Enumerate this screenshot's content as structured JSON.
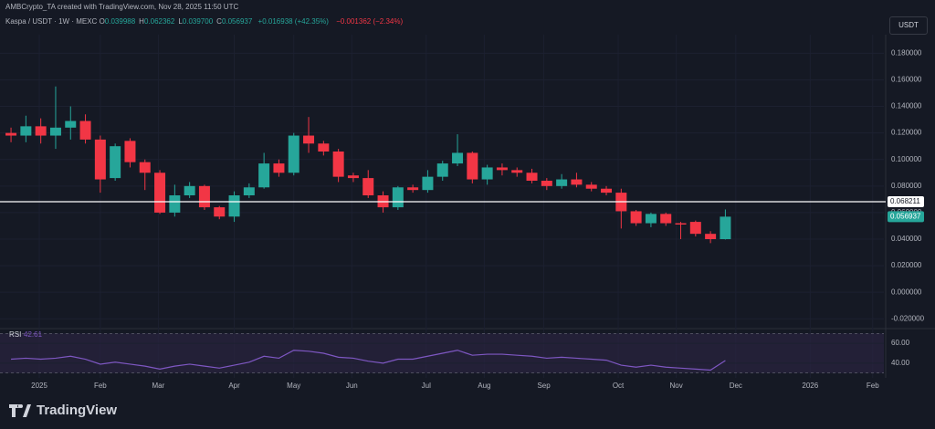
{
  "header": {
    "credit": "AMBCrypto_TA created with TradingView.com, Nov 28, 2025 11:50 UTC",
    "symbol": "Kaspa / USDT · 1W · MEXC",
    "ohlc": [
      {
        "key": "O",
        "value": "0.039988"
      },
      {
        "key": "H",
        "value": "0.062362"
      },
      {
        "key": "L",
        "value": "0.039700"
      },
      {
        "key": "C",
        "value": "0.056937"
      }
    ],
    "change": "+0.016938 (+42.35%)",
    "change_prev": "−0.001362 (−2.34%)"
  },
  "currency_button": "USDT",
  "indicator_name": "RSI",
  "brand": "TradingView",
  "chart_data": [
    {
      "type": "candlestick",
      "up_color": "#26a69a",
      "down_color": "#f23645",
      "grid": true,
      "x": [
        0,
        1,
        2,
        3,
        4,
        5,
        6,
        7,
        8,
        9,
        10,
        11,
        12,
        13,
        14,
        15,
        16,
        17,
        18,
        19,
        20,
        21,
        22,
        23,
        24,
        25,
        26,
        27,
        28,
        29,
        30,
        31,
        32,
        33,
        34,
        35,
        36,
        37,
        38,
        39,
        40,
        41,
        42,
        43,
        44,
        45,
        46,
        47,
        48
      ],
      "open": [
        0.12,
        0.118,
        0.125,
        0.118,
        0.124,
        0.129,
        0.115,
        0.086,
        0.114,
        0.098,
        0.09,
        0.06,
        0.073,
        0.08,
        0.064,
        0.057,
        0.073,
        0.079,
        0.097,
        0.09,
        0.118,
        0.112,
        0.106,
        0.088,
        0.086,
        0.073,
        0.064,
        0.079,
        0.077,
        0.087,
        0.097,
        0.105,
        0.085,
        0.094,
        0.092,
        0.09,
        0.084,
        0.08,
        0.085,
        0.081,
        0.078,
        0.075,
        0.061,
        0.052,
        0.059,
        0.052,
        0.053,
        0.044,
        0.039988
      ],
      "high": [
        0.124,
        0.133,
        0.131,
        0.155,
        0.14,
        0.134,
        0.118,
        0.112,
        0.116,
        0.1,
        0.092,
        0.081,
        0.083,
        0.081,
        0.065,
        0.076,
        0.082,
        0.105,
        0.1,
        0.12,
        0.132,
        0.114,
        0.108,
        0.09,
        0.092,
        0.076,
        0.08,
        0.081,
        0.092,
        0.099,
        0.119,
        0.106,
        0.096,
        0.097,
        0.094,
        0.093,
        0.086,
        0.089,
        0.09,
        0.083,
        0.08,
        0.078,
        0.062,
        0.06,
        0.06,
        0.053,
        0.054,
        0.046,
        0.062362
      ],
      "low": [
        0.113,
        0.113,
        0.112,
        0.108,
        0.115,
        0.112,
        0.075,
        0.084,
        0.094,
        0.077,
        0.059,
        0.057,
        0.071,
        0.062,
        0.055,
        0.053,
        0.071,
        0.078,
        0.087,
        0.088,
        0.105,
        0.103,
        0.083,
        0.083,
        0.071,
        0.06,
        0.062,
        0.075,
        0.075,
        0.084,
        0.095,
        0.082,
        0.081,
        0.088,
        0.087,
        0.082,
        0.077,
        0.078,
        0.079,
        0.076,
        0.073,
        0.048,
        0.05,
        0.049,
        0.05,
        0.04,
        0.042,
        0.037,
        0.0397
      ],
      "close": [
        0.118,
        0.125,
        0.118,
        0.124,
        0.129,
        0.115,
        0.085,
        0.11,
        0.098,
        0.09,
        0.06,
        0.073,
        0.08,
        0.064,
        0.057,
        0.073,
        0.079,
        0.097,
        0.09,
        0.118,
        0.112,
        0.106,
        0.087,
        0.086,
        0.073,
        0.064,
        0.079,
        0.077,
        0.087,
        0.097,
        0.105,
        0.085,
        0.094,
        0.092,
        0.09,
        0.084,
        0.08,
        0.085,
        0.081,
        0.078,
        0.075,
        0.061,
        0.052,
        0.059,
        0.052,
        0.051,
        0.044,
        0.04,
        0.056937
      ],
      "xlim": [
        -0.74,
        58.65
      ],
      "xticks": [
        {
          "value": 1.9,
          "label": "2025"
        },
        {
          "value": 6.0,
          "label": "Feb"
        },
        {
          "value": 9.9,
          "label": "Mar"
        },
        {
          "value": 15.0,
          "label": "Apr"
        },
        {
          "value": 19.0,
          "label": "May"
        },
        {
          "value": 22.9,
          "label": "Jun"
        },
        {
          "value": 27.9,
          "label": "Jul"
        },
        {
          "value": 31.8,
          "label": "Aug"
        },
        {
          "value": 35.8,
          "label": "Sep"
        },
        {
          "value": 40.8,
          "label": "Oct"
        },
        {
          "value": 44.7,
          "label": "Nov"
        },
        {
          "value": 48.7,
          "label": "Dec"
        },
        {
          "value": 53.7,
          "label": "2026"
        },
        {
          "value": 57.9,
          "label": "Feb"
        }
      ],
      "ylim": [
        -0.026,
        0.194
      ],
      "yticks": [
        {
          "value": -0.02,
          "label": "-0.020000"
        },
        {
          "value": 0,
          "label": "0.000000"
        },
        {
          "value": 0.02,
          "label": "0.020000"
        },
        {
          "value": 0.04,
          "label": "0.040000"
        },
        {
          "value": 0.06,
          "label": "0.060000"
        },
        {
          "value": 0.08,
          "label": "0.080000"
        },
        {
          "value": 0.1,
          "label": "0.100000"
        },
        {
          "value": 0.12,
          "label": "0.120000"
        },
        {
          "value": 0.14,
          "label": "0.140000"
        },
        {
          "value": 0.16,
          "label": "0.160000"
        },
        {
          "value": 0.18,
          "label": "0.180000"
        }
      ],
      "price_line": 0.068211,
      "price_line_color": "#ffffff"
    },
    {
      "type": "line",
      "color": "#7e57c2",
      "band": [
        30,
        70
      ],
      "band_color": "#2a2340",
      "values": [
        44,
        45,
        44,
        45,
        47,
        44,
        39,
        41,
        39,
        37,
        34,
        37,
        39,
        37,
        35,
        38,
        41,
        47,
        45,
        53,
        52,
        50,
        46,
        45,
        42,
        40,
        44,
        44,
        47,
        50,
        53,
        48,
        49,
        49,
        48,
        47,
        45,
        46,
        45,
        44,
        43,
        38,
        36,
        38,
        36,
        35,
        34,
        33,
        42.61
      ],
      "ylim": [
        27,
        73
      ],
      "yticks": [
        {
          "value": 40,
          "label": "40.00"
        },
        {
          "value": 60,
          "label": "60.00"
        }
      ]
    }
  ]
}
